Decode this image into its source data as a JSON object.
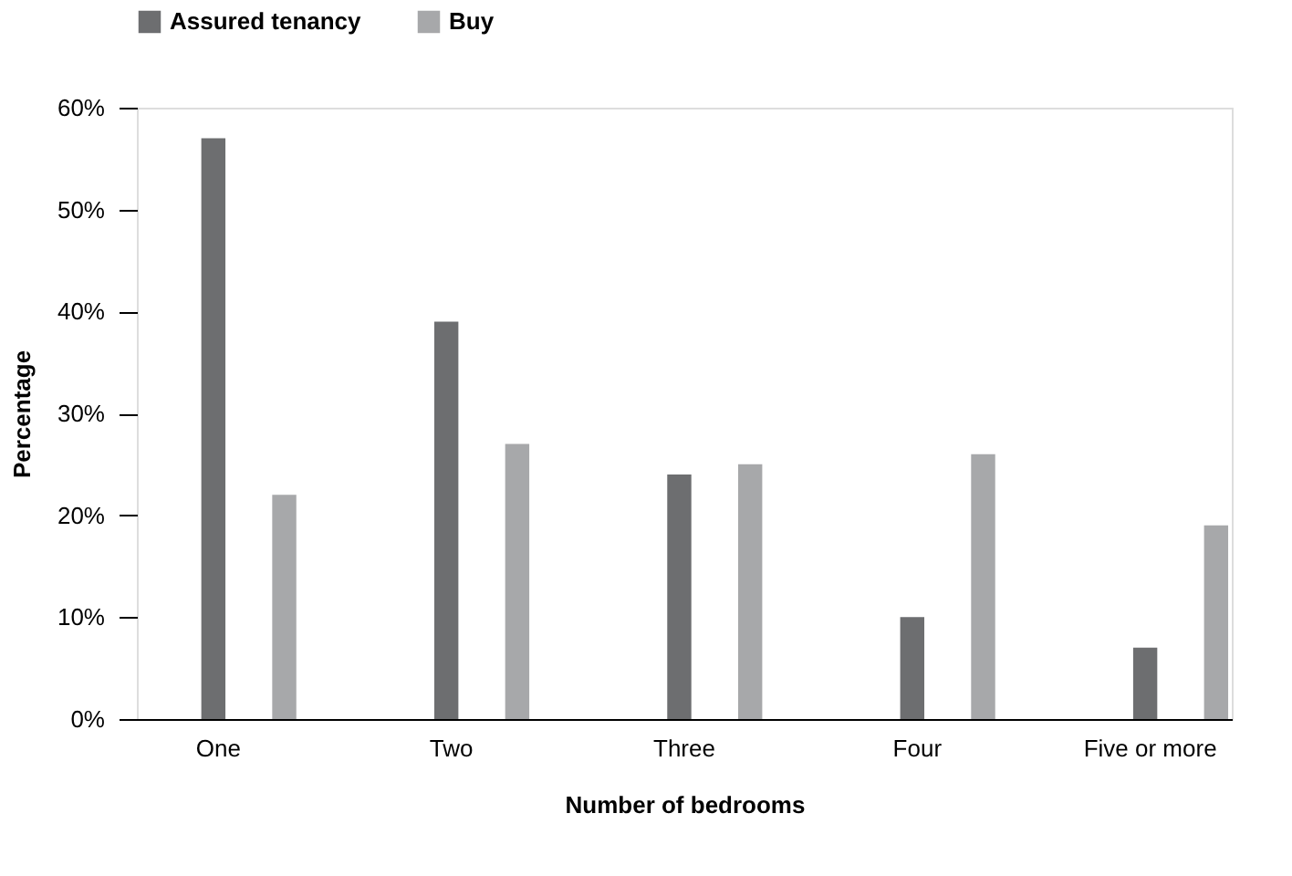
{
  "chart_data": {
    "type": "bar",
    "categories": [
      "One",
      "Two",
      "Three",
      "Four",
      "Five or more"
    ],
    "series": [
      {
        "name": "Assured tenancy",
        "color": "#6d6e70",
        "values": [
          57,
          39,
          24,
          10,
          7
        ]
      },
      {
        "name": "Buy",
        "color": "#a7a8aa",
        "values": [
          22,
          27,
          25,
          26,
          19
        ]
      }
    ],
    "xlabel": "Number of bedrooms",
    "ylabel": "Percentage",
    "ylim": [
      0,
      60
    ],
    "yticks": [
      {
        "value": 0,
        "label": "0%"
      },
      {
        "value": 10,
        "label": "10%"
      },
      {
        "value": 20,
        "label": "20%"
      },
      {
        "value": 30,
        "label": "30%"
      },
      {
        "value": 40,
        "label": "40%"
      },
      {
        "value": 50,
        "label": "50%"
      },
      {
        "value": 60,
        "label": "60%"
      }
    ],
    "grid": false,
    "legend": "top left"
  }
}
